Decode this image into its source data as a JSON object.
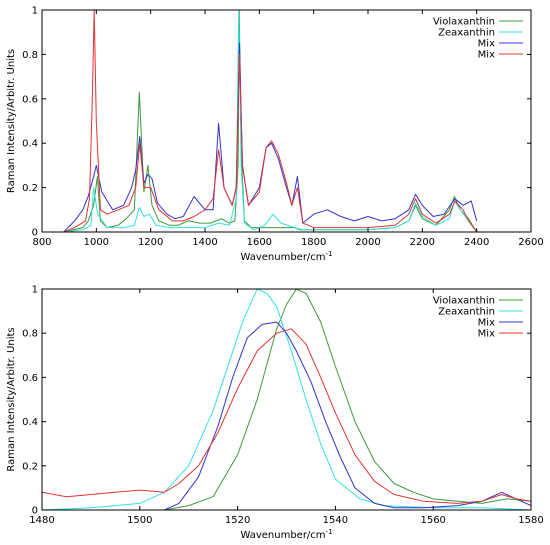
{
  "chart_data": [
    {
      "type": "line",
      "xlabel": "Wavenumber/cm",
      "xlabel_sup": "-1",
      "ylabel": "Raman Intensity/Arbitr. Units",
      "xlim": [
        800,
        2600
      ],
      "ylim": [
        0,
        1
      ],
      "xticks": [
        "800",
        "1000",
        "1200",
        "1400",
        "1600",
        "1800",
        "2000",
        "2200",
        "2400",
        "2600"
      ],
      "xtick_values": [
        800,
        1000,
        1200,
        1400,
        1600,
        1800,
        2000,
        2200,
        2400,
        2600
      ],
      "yticks": [
        "0",
        "0.2",
        "0.4",
        "0.6",
        "0.8",
        "1"
      ],
      "ytick_values": [
        0,
        0.2,
        0.4,
        0.6,
        0.8,
        1
      ],
      "grid": false,
      "legend_position": "top-right",
      "series": [
        {
          "name": "Violaxanthin",
          "color": "#3c9a3c",
          "x": [
            880,
            950,
            970,
            990,
            1004,
            1015,
            1040,
            1080,
            1110,
            1140,
            1158,
            1175,
            1190,
            1205,
            1230,
            1270,
            1300,
            1340,
            1380,
            1420,
            1460,
            1490,
            1510,
            1522,
            1526,
            1534,
            1545,
            1570,
            1600,
            1650,
            1700,
            1730,
            1750,
            1800,
            1900,
            2000,
            2100,
            2150,
            2175,
            2200,
            2250,
            2300,
            2318,
            2340,
            2370,
            2400
          ],
          "y": [
            0.0,
            0.02,
            0.05,
            0.12,
            0.25,
            0.05,
            0.02,
            0.03,
            0.06,
            0.1,
            0.63,
            0.18,
            0.3,
            0.12,
            0.05,
            0.03,
            0.03,
            0.05,
            0.04,
            0.04,
            0.06,
            0.04,
            0.05,
            0.3,
            1.0,
            0.35,
            0.05,
            0.02,
            0.02,
            0.02,
            0.02,
            0.02,
            0.01,
            0.01,
            0.01,
            0.01,
            0.02,
            0.05,
            0.12,
            0.06,
            0.03,
            0.1,
            0.16,
            0.1,
            0.06,
            0.0
          ]
        },
        {
          "name": "Zeaxanthin",
          "color": "#33e0e0",
          "x": [
            880,
            950,
            980,
            990,
            1005,
            1040,
            1100,
            1140,
            1158,
            1175,
            1195,
            1220,
            1270,
            1350,
            1400,
            1450,
            1490,
            1515,
            1524,
            1533,
            1545,
            1580,
            1620,
            1650,
            1680,
            1730,
            1760,
            1850,
            2000,
            2100,
            2150,
            2175,
            2200,
            2250,
            2300,
            2318,
            2340,
            2370,
            2400
          ],
          "y": [
            0.0,
            0.01,
            0.03,
            0.2,
            0.08,
            0.02,
            0.02,
            0.03,
            0.11,
            0.07,
            0.08,
            0.03,
            0.02,
            0.02,
            0.02,
            0.04,
            0.03,
            0.15,
            1.0,
            0.3,
            0.04,
            0.01,
            0.03,
            0.08,
            0.04,
            0.02,
            0.01,
            0.01,
            0.01,
            0.02,
            0.05,
            0.13,
            0.07,
            0.03,
            0.06,
            0.14,
            0.1,
            0.05,
            0.0
          ]
        },
        {
          "name": "Mix",
          "color": "#3333cc",
          "x": [
            880,
            920,
            950,
            970,
            990,
            1000,
            1020,
            1060,
            1100,
            1130,
            1145,
            1160,
            1175,
            1190,
            1205,
            1225,
            1260,
            1290,
            1320,
            1360,
            1400,
            1430,
            1450,
            1470,
            1500,
            1515,
            1527,
            1538,
            1560,
            1600,
            1625,
            1645,
            1670,
            1700,
            1720,
            1740,
            1760,
            1800,
            1850,
            1900,
            1950,
            2000,
            2050,
            2100,
            2150,
            2175,
            2200,
            2240,
            2280,
            2320,
            2350,
            2380,
            2400
          ],
          "y": [
            0.0,
            0.05,
            0.1,
            0.16,
            0.25,
            0.3,
            0.18,
            0.1,
            0.12,
            0.2,
            0.28,
            0.43,
            0.22,
            0.26,
            0.24,
            0.13,
            0.08,
            0.06,
            0.07,
            0.16,
            0.1,
            0.1,
            0.49,
            0.2,
            0.12,
            0.2,
            0.85,
            0.3,
            0.12,
            0.2,
            0.38,
            0.4,
            0.33,
            0.2,
            0.12,
            0.25,
            0.04,
            0.08,
            0.1,
            0.07,
            0.05,
            0.07,
            0.05,
            0.06,
            0.1,
            0.17,
            0.12,
            0.07,
            0.08,
            0.15,
            0.12,
            0.14,
            0.05
          ]
        },
        {
          "name": "Mix",
          "color": "#e03333",
          "x": [
            880,
            920,
            960,
            975,
            985,
            992,
            1000,
            1015,
            1040,
            1080,
            1120,
            1145,
            1160,
            1175,
            1200,
            1230,
            1280,
            1320,
            1360,
            1400,
            1430,
            1450,
            1470,
            1500,
            1515,
            1527,
            1538,
            1560,
            1600,
            1625,
            1645,
            1670,
            1700,
            1720,
            1740,
            1760,
            1800,
            1900,
            2000,
            2100,
            2150,
            2175,
            2200,
            2250,
            2300,
            2320,
            2350,
            2370,
            2400
          ],
          "y": [
            0.0,
            0.02,
            0.05,
            0.15,
            0.6,
            1.0,
            0.5,
            0.1,
            0.08,
            0.1,
            0.12,
            0.2,
            0.4,
            0.2,
            0.2,
            0.1,
            0.05,
            0.05,
            0.07,
            0.1,
            0.15,
            0.37,
            0.2,
            0.12,
            0.2,
            0.8,
            0.3,
            0.12,
            0.18,
            0.38,
            0.41,
            0.35,
            0.22,
            0.12,
            0.2,
            0.04,
            0.02,
            0.02,
            0.02,
            0.03,
            0.08,
            0.15,
            0.08,
            0.04,
            0.08,
            0.14,
            0.1,
            0.05,
            0.0
          ]
        }
      ]
    },
    {
      "type": "line",
      "xlabel": "Wavenumber/cm",
      "xlabel_sup": "-1",
      "ylabel": "Raman Intensity/Arbitr. Units",
      "xlim": [
        1480,
        1580
      ],
      "ylim": [
        0,
        1
      ],
      "xticks": [
        "1480",
        "1500",
        "1520",
        "1540",
        "1560",
        "1580"
      ],
      "xtick_values": [
        1480,
        1500,
        1520,
        1540,
        1560,
        1580
      ],
      "yticks": [
        "0",
        "0.2",
        "0.4",
        "0.6",
        "0.8",
        "1"
      ],
      "ytick_values": [
        0,
        0.2,
        0.4,
        0.6,
        0.8,
        1
      ],
      "grid": false,
      "legend_position": "top-right",
      "series": [
        {
          "name": "Violaxanthin",
          "color": "#3c9a3c",
          "x": [
            1505,
            1510,
            1515,
            1520,
            1524,
            1528,
            1530,
            1532,
            1534,
            1537,
            1540,
            1544,
            1548,
            1552,
            1556,
            1560,
            1565,
            1570,
            1575,
            1580
          ],
          "y": [
            0.0,
            0.02,
            0.06,
            0.25,
            0.5,
            0.82,
            0.93,
            1.0,
            0.98,
            0.85,
            0.65,
            0.4,
            0.22,
            0.12,
            0.08,
            0.05,
            0.04,
            0.03,
            0.05,
            0.04
          ]
        },
        {
          "name": "Zeaxanthin",
          "color": "#33e0e0",
          "x": [
            1480,
            1490,
            1500,
            1505,
            1510,
            1515,
            1518,
            1521,
            1524,
            1526,
            1528,
            1531,
            1534,
            1537,
            1540,
            1545,
            1550,
            1560,
            1570,
            1580
          ],
          "y": [
            0.0,
            0.01,
            0.03,
            0.08,
            0.2,
            0.45,
            0.65,
            0.85,
            1.0,
            0.98,
            0.92,
            0.72,
            0.5,
            0.3,
            0.14,
            0.05,
            0.02,
            0.01,
            0.01,
            0.0
          ]
        },
        {
          "name": "Mix",
          "color": "#3333cc",
          "x": [
            1505,
            1508,
            1512,
            1516,
            1519,
            1522,
            1525,
            1528,
            1530,
            1532,
            1535,
            1538,
            1541,
            1544,
            1548,
            1552,
            1558,
            1565,
            1570,
            1574,
            1577,
            1580
          ],
          "y": [
            0.0,
            0.03,
            0.15,
            0.38,
            0.6,
            0.78,
            0.84,
            0.85,
            0.8,
            0.72,
            0.58,
            0.4,
            0.24,
            0.1,
            0.03,
            0.01,
            0.01,
            0.02,
            0.04,
            0.08,
            0.05,
            0.02
          ]
        },
        {
          "name": "Mix",
          "color": "#e03333",
          "x": [
            1480,
            1485,
            1490,
            1495,
            1500,
            1505,
            1508,
            1512,
            1516,
            1520,
            1524,
            1528,
            1531,
            1534,
            1537,
            1540,
            1544,
            1548,
            1552,
            1558,
            1565,
            1570,
            1574,
            1577,
            1580
          ],
          "y": [
            0.08,
            0.06,
            0.07,
            0.08,
            0.09,
            0.08,
            0.12,
            0.2,
            0.35,
            0.55,
            0.72,
            0.8,
            0.82,
            0.75,
            0.6,
            0.44,
            0.25,
            0.13,
            0.07,
            0.04,
            0.03,
            0.04,
            0.07,
            0.05,
            0.04
          ]
        }
      ]
    }
  ]
}
